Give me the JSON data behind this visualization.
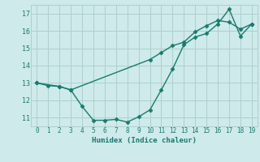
{
  "line1_x": [
    0,
    1,
    2,
    3,
    4,
    5,
    6,
    7,
    8,
    9,
    10,
    11,
    12,
    13,
    14,
    15,
    16,
    17,
    18,
    19
  ],
  "line1_y": [
    13.0,
    12.85,
    12.8,
    12.6,
    11.65,
    10.85,
    10.85,
    10.9,
    10.75,
    11.05,
    11.45,
    12.6,
    13.8,
    15.2,
    15.65,
    15.85,
    16.4,
    17.25,
    15.7,
    16.4
  ],
  "line2_x": [
    0,
    2,
    3,
    10,
    11,
    12,
    13,
    14,
    15,
    16,
    17,
    18,
    19
  ],
  "line2_y": [
    13.0,
    12.8,
    12.6,
    14.35,
    14.75,
    15.15,
    15.35,
    15.95,
    16.3,
    16.6,
    16.5,
    16.1,
    16.4
  ],
  "line_color": "#1a7a6e",
  "bg_color": "#ceeaea",
  "grid_color": "#aed0d0",
  "xlabel": "Humidex (Indice chaleur)",
  "xlim": [
    -0.5,
    19.5
  ],
  "ylim": [
    10.5,
    17.5
  ],
  "yticks": [
    11,
    12,
    13,
    14,
    15,
    16,
    17
  ],
  "xticks": [
    0,
    1,
    2,
    3,
    4,
    5,
    6,
    7,
    8,
    9,
    10,
    11,
    12,
    13,
    14,
    15,
    16,
    17,
    18,
    19
  ],
  "marker": "D",
  "markersize": 2.5,
  "linewidth": 1.0
}
